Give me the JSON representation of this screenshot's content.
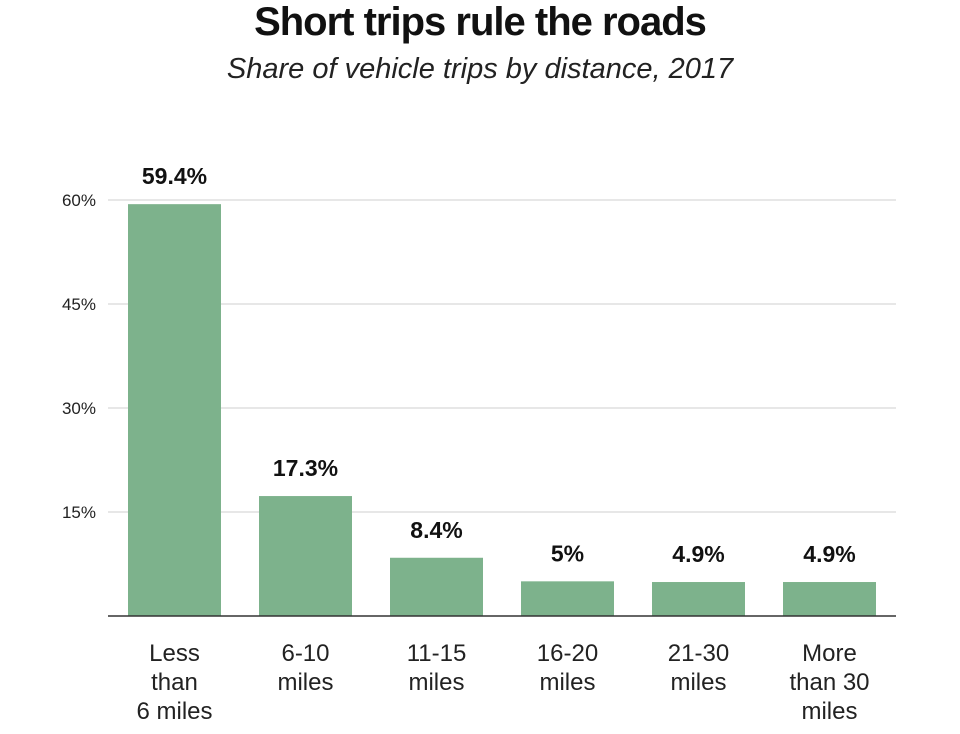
{
  "chart_data": {
    "type": "bar",
    "title": "Short trips rule the roads",
    "subtitle": "Share of vehicle trips by distance, 2017",
    "categories": [
      [
        "Less",
        "than",
        "6 miles"
      ],
      [
        "6-10",
        "miles"
      ],
      [
        "11-15",
        "miles"
      ],
      [
        "16-20",
        "miles"
      ],
      [
        "21-30",
        "miles"
      ],
      [
        "More",
        "than 30",
        "miles"
      ]
    ],
    "values": [
      59.4,
      17.3,
      8.4,
      5,
      4.9,
      4.9
    ],
    "value_labels": [
      "59.4%",
      "17.3%",
      "8.4%",
      "5%",
      "4.9%",
      "4.9%"
    ],
    "yticks": [
      {
        "value": 15,
        "label": "15%"
      },
      {
        "value": 30,
        "label": "30%"
      },
      {
        "value": 45,
        "label": "45%"
      },
      {
        "value": 60,
        "label": "60%"
      }
    ],
    "ylim": [
      0,
      60
    ],
    "xlabel": "",
    "ylabel": "",
    "grid": true,
    "bar_color": "#7db28c"
  }
}
